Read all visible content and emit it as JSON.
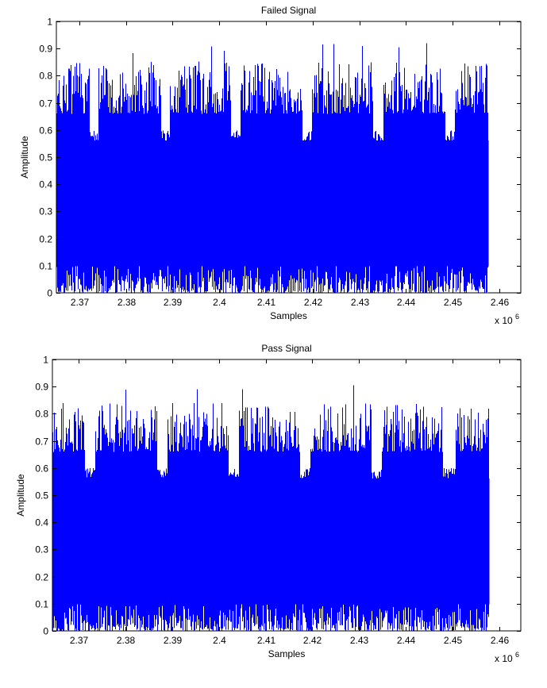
{
  "chart_data": [
    {
      "type": "line",
      "title": "Failed Signal",
      "xlabel": "Samples",
      "ylabel": "Amplitude",
      "x_exponent": "x 10",
      "x_exponent_power": "6",
      "xlim": [
        2.3651,
        2.4646
      ],
      "ylim": [
        0,
        1
      ],
      "xticks": [
        2.37,
        2.38,
        2.39,
        2.4,
        2.41,
        2.42,
        2.43,
        2.44,
        2.45,
        2.46
      ],
      "xtick_labels": [
        "2.37",
        "2.38",
        "2.39",
        "2.4",
        "2.41",
        "2.42",
        "2.43",
        "2.44",
        "2.45",
        "2.46"
      ],
      "yticks": [
        0,
        0.1,
        0.2,
        0.3,
        0.4,
        0.5,
        0.6,
        0.7,
        0.8,
        0.9,
        1
      ],
      "ytick_labels": [
        "0",
        "0.1",
        "0.2",
        "0.3",
        "0.4",
        "0.5",
        "0.6",
        "0.7",
        "0.8",
        "0.9",
        "1"
      ],
      "series": [
        {
          "name": "signal",
          "color": "#0000ff",
          "x_range": [
            2.3651,
            2.4575
          ],
          "upper_level_typical": [
            0.66,
            0.85
          ],
          "upper_peak_max": 0.92,
          "lower_level_typical": [
            0.0,
            0.1
          ],
          "gap_upper_level": [
            0.55,
            0.6
          ],
          "gaps": [
            [
              2.3723,
              2.3741
            ],
            [
              2.3876,
              2.3895
            ],
            [
              2.4026,
              2.4045
            ],
            [
              2.4179,
              2.4198
            ],
            [
              2.4329,
              2.4351
            ],
            [
              2.4484,
              2.4504
            ]
          ],
          "seed": 7
        }
      ]
    },
    {
      "type": "line",
      "title": "Pass Signal",
      "xlabel": "Samples",
      "ylabel": "Amplitude",
      "x_exponent": "x 10",
      "x_exponent_power": "6",
      "xlim": [
        2.3644,
        2.4646
      ],
      "ylim": [
        0,
        1
      ],
      "xticks": [
        2.37,
        2.38,
        2.39,
        2.4,
        2.41,
        2.42,
        2.43,
        2.44,
        2.45,
        2.46
      ],
      "xtick_labels": [
        "2.37",
        "2.38",
        "2.39",
        "2.4",
        "2.41",
        "2.42",
        "2.43",
        "2.44",
        "2.45",
        "2.46"
      ],
      "yticks": [
        0,
        0.1,
        0.2,
        0.3,
        0.4,
        0.5,
        0.6,
        0.7,
        0.8,
        0.9,
        1
      ],
      "ytick_labels": [
        "0",
        "0.1",
        "0.2",
        "0.3",
        "0.4",
        "0.5",
        "0.6",
        "0.7",
        "0.8",
        "0.9",
        "1"
      ],
      "series": [
        {
          "name": "signal",
          "color": "#0000ff",
          "x_range": [
            2.3644,
            2.4576
          ],
          "upper_level_typical": [
            0.66,
            0.84
          ],
          "upper_peak_max": 0.92,
          "lower_level_typical": [
            0.0,
            0.1
          ],
          "gap_upper_level": [
            0.56,
            0.6
          ],
          "gaps": [
            [
              2.3714,
              2.3735
            ],
            [
              2.3868,
              2.389
            ],
            [
              2.4021,
              2.4043
            ],
            [
              2.4174,
              2.4196
            ],
            [
              2.4327,
              2.4349
            ],
            [
              2.448,
              2.4506
            ]
          ],
          "seed": 13
        }
      ]
    }
  ]
}
